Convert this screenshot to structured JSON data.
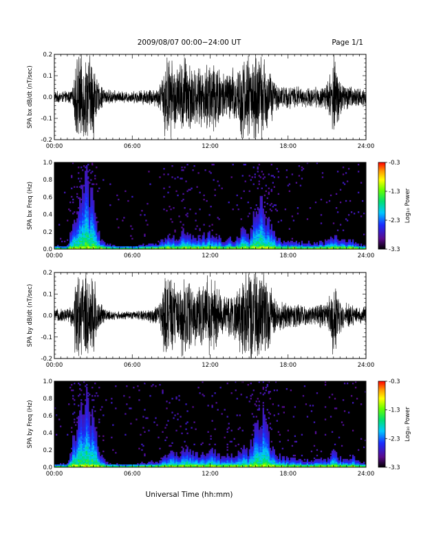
{
  "header": {
    "title": "2009/08/07   00:00−24:00 UT",
    "page": "Page 1/1"
  },
  "colorbar": {
    "label": "Log₁₀ Power",
    "ticks": [
      "-0.3",
      "-1.3",
      "-2.3",
      "-3.3"
    ],
    "range": [
      -3.3,
      -0.3
    ]
  },
  "chart_data": [
    {
      "type": "line",
      "ylabel": "SPA bx dB/dt (nT/sec)",
      "xlabel": "",
      "xlim": [
        "00:00",
        "24:00"
      ],
      "ylim": [
        -0.2,
        0.2
      ],
      "x_ticks": [
        "00:00",
        "06:00",
        "12:00",
        "18:00",
        "24:00"
      ],
      "y_ticks": [
        "-0.2",
        "-0.1",
        "0.0",
        "0.1",
        "0.2"
      ],
      "envelope": {
        "hours": [
          0,
          1,
          1.5,
          1.6,
          3.1,
          3.3,
          4,
          5,
          6,
          7,
          8,
          8.3,
          8.5,
          9,
          9.5,
          10,
          10.5,
          11,
          11.5,
          12,
          12.5,
          13,
          13.5,
          14,
          14.5,
          15,
          15.5,
          16,
          16.5,
          17,
          17.5,
          18,
          18.5,
          19,
          19.5,
          20,
          20.5,
          21,
          21.5,
          22,
          22.5,
          23,
          23.5,
          24
        ],
        "amplitude": [
          0.03,
          0.03,
          0.05,
          0.22,
          0.22,
          0.08,
          0.04,
          0.03,
          0.03,
          0.04,
          0.05,
          0.1,
          0.22,
          0.2,
          0.16,
          0.22,
          0.2,
          0.14,
          0.15,
          0.22,
          0.2,
          0.13,
          0.14,
          0.16,
          0.22,
          0.22,
          0.22,
          0.22,
          0.18,
          0.07,
          0.06,
          0.06,
          0.06,
          0.05,
          0.05,
          0.05,
          0.06,
          0.07,
          0.22,
          0.1,
          0.07,
          0.05,
          0.05,
          0.05
        ]
      }
    },
    {
      "type": "heatmap",
      "ylabel": "SPA bx Freq (Hz)",
      "xlabel": "",
      "xlim": [
        "00:00",
        "24:00"
      ],
      "ylim": [
        0.0,
        1.0
      ],
      "x_ticks": [
        "00:00",
        "06:00",
        "12:00",
        "18:00",
        "24:00"
      ],
      "y_ticks": [
        "0.0",
        "0.2",
        "0.4",
        "0.6",
        "0.8",
        "1.0"
      ],
      "activity": {
        "hours": [
          0,
          1,
          1.5,
          2,
          2.5,
          3,
          3.5,
          4,
          5,
          6,
          7,
          8,
          8.5,
          9,
          9.5,
          10,
          10.5,
          11,
          11.5,
          12,
          12.5,
          13,
          13.5,
          14,
          14.5,
          15,
          15.5,
          16,
          16.5,
          17,
          17.5,
          18,
          18.5,
          19,
          19.5,
          20,
          20.5,
          21,
          21.5,
          22,
          22.5,
          23,
          23.5,
          24
        ],
        "max_freq": [
          0.03,
          0.04,
          0.3,
          0.55,
          0.8,
          0.5,
          0.12,
          0.05,
          0.03,
          0.03,
          0.05,
          0.06,
          0.12,
          0.14,
          0.12,
          0.2,
          0.16,
          0.12,
          0.15,
          0.18,
          0.14,
          0.1,
          0.12,
          0.1,
          0.22,
          0.14,
          0.42,
          0.5,
          0.3,
          0.15,
          0.1,
          0.08,
          0.08,
          0.07,
          0.07,
          0.07,
          0.08,
          0.08,
          0.15,
          0.1,
          0.08,
          0.1,
          0.05,
          0.04
        ]
      }
    },
    {
      "type": "line",
      "ylabel": "SPA by dB/dt (nT/sec)",
      "xlabel": "",
      "xlim": [
        "00:00",
        "24:00"
      ],
      "ylim": [
        -0.2,
        0.2
      ],
      "x_ticks": [
        "00:00",
        "06:00",
        "12:00",
        "18:00",
        "24:00"
      ],
      "y_ticks": [
        "-0.2",
        "-0.1",
        "0.0",
        "0.1",
        "0.2"
      ],
      "envelope": {
        "hours": [
          0,
          1,
          1.5,
          1.6,
          3.1,
          3.3,
          4,
          5,
          6,
          7,
          8,
          8.3,
          8.5,
          9,
          9.5,
          10,
          10.5,
          11,
          11.5,
          12,
          12.5,
          13,
          13.5,
          14,
          14.5,
          15,
          15.5,
          16,
          16.5,
          17,
          17.5,
          18,
          18.5,
          19,
          19.5,
          20,
          20.5,
          21,
          21.5,
          22,
          22.5,
          23,
          23.5,
          24
        ],
        "amplitude": [
          0.03,
          0.04,
          0.06,
          0.22,
          0.22,
          0.09,
          0.03,
          0.02,
          0.02,
          0.03,
          0.05,
          0.12,
          0.22,
          0.2,
          0.15,
          0.22,
          0.2,
          0.14,
          0.16,
          0.22,
          0.16,
          0.1,
          0.12,
          0.13,
          0.22,
          0.22,
          0.22,
          0.22,
          0.2,
          0.08,
          0.07,
          0.07,
          0.06,
          0.06,
          0.05,
          0.06,
          0.06,
          0.07,
          0.22,
          0.1,
          0.07,
          0.05,
          0.05,
          0.05
        ]
      }
    },
    {
      "type": "heatmap",
      "ylabel": "SPA by Freq (Hz)",
      "xlabel": "Universal Time (hh:mm)",
      "xlim": [
        "00:00",
        "24:00"
      ],
      "ylim": [
        0.0,
        1.0
      ],
      "x_ticks": [
        "00:00",
        "06:00",
        "12:00",
        "18:00",
        "24:00"
      ],
      "y_ticks": [
        "0.0",
        "0.2",
        "0.4",
        "0.6",
        "0.8",
        "1.0"
      ],
      "activity": {
        "hours": [
          0,
          1,
          1.5,
          2,
          2.5,
          3,
          3.5,
          4,
          5,
          6,
          7,
          8,
          8.5,
          9,
          9.5,
          10,
          10.5,
          11,
          11.5,
          12,
          12.5,
          13,
          13.5,
          14,
          14.5,
          15,
          15.5,
          16,
          16.5,
          17,
          17.5,
          18,
          18.5,
          19,
          19.5,
          20,
          20.5,
          21,
          21.5,
          22,
          22.5,
          23,
          23.5,
          24
        ],
        "max_freq": [
          0.03,
          0.04,
          0.35,
          0.6,
          0.85,
          0.5,
          0.14,
          0.05,
          0.03,
          0.03,
          0.05,
          0.07,
          0.14,
          0.16,
          0.14,
          0.22,
          0.18,
          0.14,
          0.16,
          0.2,
          0.16,
          0.12,
          0.13,
          0.12,
          0.25,
          0.16,
          0.5,
          0.6,
          0.35,
          0.18,
          0.12,
          0.1,
          0.09,
          0.08,
          0.08,
          0.08,
          0.09,
          0.09,
          0.18,
          0.1,
          0.09,
          0.12,
          0.06,
          0.05
        ]
      }
    }
  ]
}
